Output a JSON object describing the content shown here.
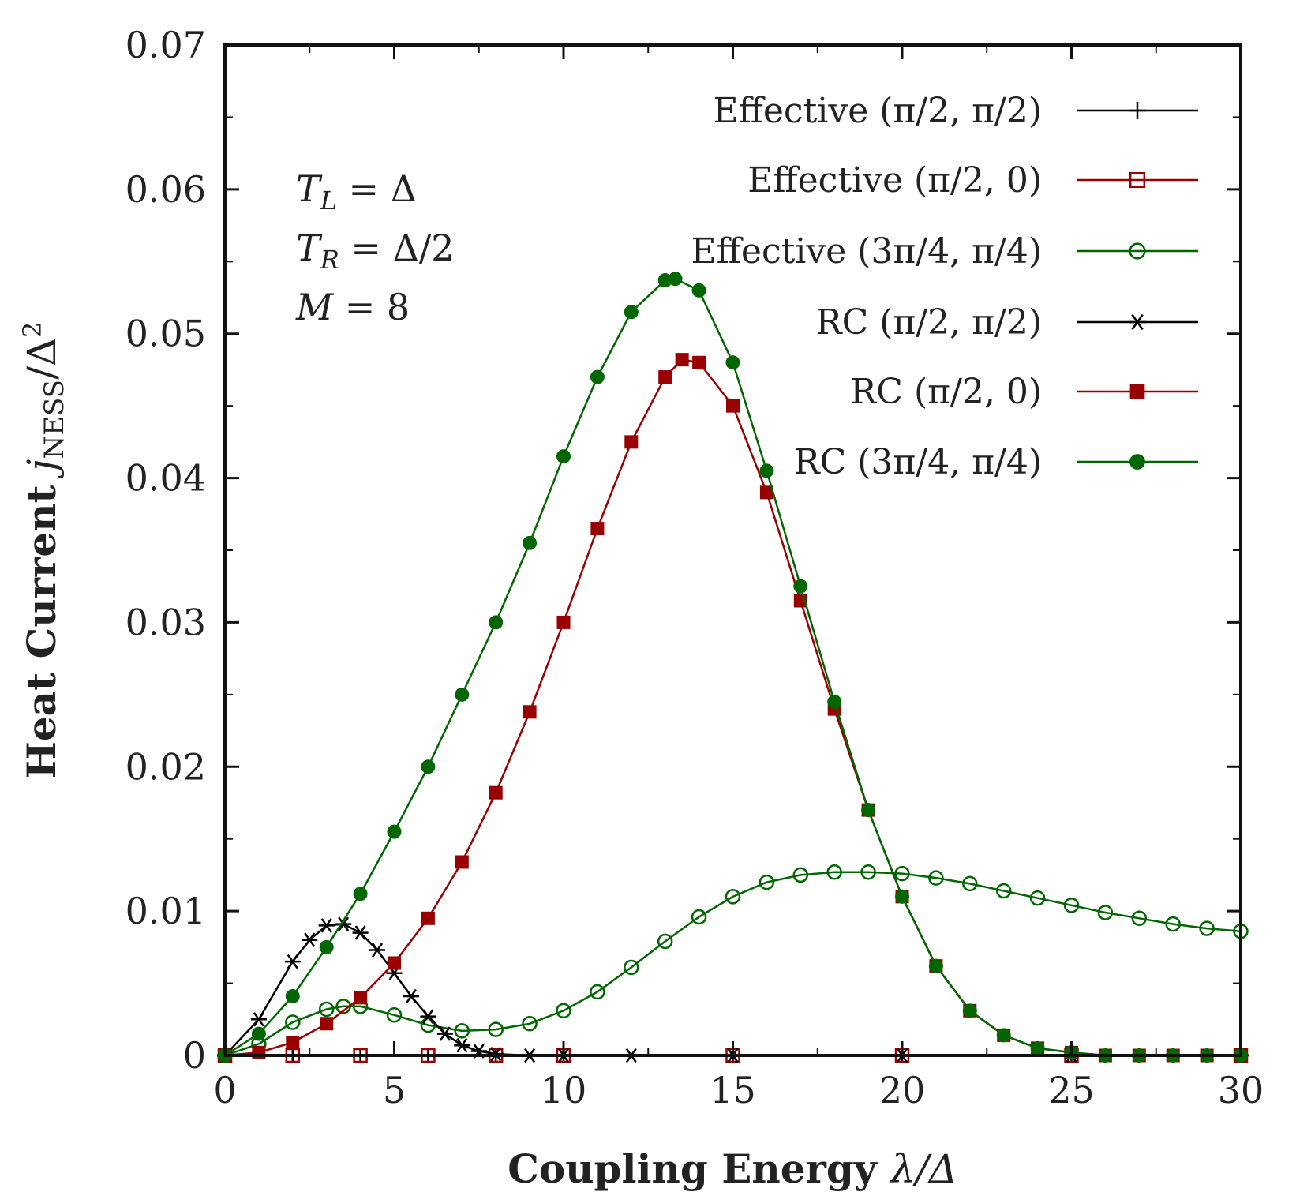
{
  "chart_data": {
    "type": "scatter",
    "xlabel": "Coupling Energy λ/Δ",
    "ylabel": "Heat Current j_NESS/Δ²",
    "xlim": [
      0,
      30
    ],
    "ylim": [
      0,
      0.07
    ],
    "x_ticks": [
      "0",
      "5",
      "10",
      "15",
      "20",
      "25",
      "30"
    ],
    "y_ticks": [
      "0",
      "0.01",
      "0.02",
      "0.03",
      "0.04",
      "0.05",
      "0.06",
      "0.07"
    ],
    "grid": false,
    "legend_position": "top-right",
    "annotations": [
      "T_L = Δ",
      "T_R = Δ/2",
      "M = 8"
    ],
    "series": [
      {
        "name": "Effective (π/2, π/2)",
        "color": "#000000",
        "marker": "plus",
        "x": [
          0,
          2,
          4,
          6,
          8,
          10,
          15,
          20,
          25,
          30
        ],
        "values": [
          0,
          0,
          0,
          0,
          0,
          0,
          0,
          0,
          0,
          0
        ]
      },
      {
        "name": "Effective (π/2, 0)",
        "color": "#990000",
        "marker": "open-square",
        "x": [
          0,
          2,
          4,
          6,
          8,
          10,
          15,
          20,
          25,
          30
        ],
        "values": [
          0,
          0,
          0,
          0,
          0,
          0,
          0,
          0,
          0,
          0
        ]
      },
      {
        "name": "Effective (3π/4, π/4)",
        "color": "#006600",
        "marker": "open-circle",
        "x": [
          0,
          1,
          2,
          3,
          3.5,
          4,
          5,
          6,
          7,
          8,
          9,
          10,
          11,
          12,
          13,
          14,
          15,
          16,
          17,
          18,
          19,
          20,
          21,
          22,
          23,
          24,
          25,
          26,
          27,
          28,
          29,
          30
        ],
        "values": [
          0,
          0.0008,
          0.0023,
          0.0032,
          0.0034,
          0.0034,
          0.0028,
          0.0021,
          0.0017,
          0.0018,
          0.0022,
          0.0031,
          0.0044,
          0.0061,
          0.0079,
          0.0096,
          0.011,
          0.012,
          0.0125,
          0.0127,
          0.0127,
          0.0126,
          0.0123,
          0.0119,
          0.0114,
          0.0109,
          0.0104,
          0.0099,
          0.0095,
          0.0091,
          0.0088,
          0.0086
        ]
      },
      {
        "name": "RC (π/2, π/2)",
        "color": "#000000",
        "marker": "asterisk",
        "x": [
          0,
          1,
          2,
          2.5,
          3,
          3.5,
          4,
          4.5,
          5,
          5.5,
          6,
          6.5,
          7,
          7.5,
          8,
          9,
          10,
          12,
          15,
          20,
          25,
          30
        ],
        "values": [
          0,
          0.0025,
          0.0065,
          0.008,
          0.009,
          0.0091,
          0.0085,
          0.0073,
          0.0057,
          0.0041,
          0.0027,
          0.0015,
          0.0007,
          0.0003,
          0.0001,
          0,
          0,
          0,
          0,
          0,
          0,
          0
        ]
      },
      {
        "name": "RC (π/2, 0)",
        "color": "#990000",
        "marker": "filled-square",
        "x": [
          0,
          1,
          2,
          3,
          4,
          5,
          6,
          7,
          8,
          9,
          10,
          11,
          12,
          13,
          13.5,
          14,
          15,
          16,
          17,
          18,
          19,
          20,
          21,
          22,
          23,
          24,
          25,
          26,
          27,
          28,
          29,
          30
        ],
        "values": [
          0,
          0.0002,
          0.0009,
          0.0022,
          0.004,
          0.0064,
          0.0095,
          0.0134,
          0.0182,
          0.0238,
          0.03,
          0.0365,
          0.0425,
          0.047,
          0.0482,
          0.048,
          0.045,
          0.039,
          0.0315,
          0.024,
          0.017,
          0.011,
          0.0062,
          0.0031,
          0.0014,
          0.0005,
          0.0002,
          0,
          0,
          0,
          0,
          0
        ]
      },
      {
        "name": "RC (3π/4, π/4)",
        "color": "#006600",
        "marker": "filled-circle",
        "x": [
          0,
          1,
          2,
          3,
          4,
          5,
          6,
          7,
          8,
          9,
          10,
          11,
          12,
          13,
          13.3,
          14,
          15,
          16,
          17,
          18,
          19,
          20,
          21,
          22,
          23,
          24,
          25,
          26,
          27,
          28,
          29,
          30
        ],
        "values": [
          0,
          0.0015,
          0.0041,
          0.0075,
          0.0112,
          0.0155,
          0.02,
          0.025,
          0.03,
          0.0355,
          0.0415,
          0.047,
          0.0515,
          0.0537,
          0.0538,
          0.053,
          0.048,
          0.0405,
          0.0325,
          0.0245,
          0.017,
          0.011,
          0.0062,
          0.0031,
          0.0014,
          0.0005,
          0.0002,
          0,
          0,
          0,
          0,
          0
        ]
      }
    ]
  }
}
